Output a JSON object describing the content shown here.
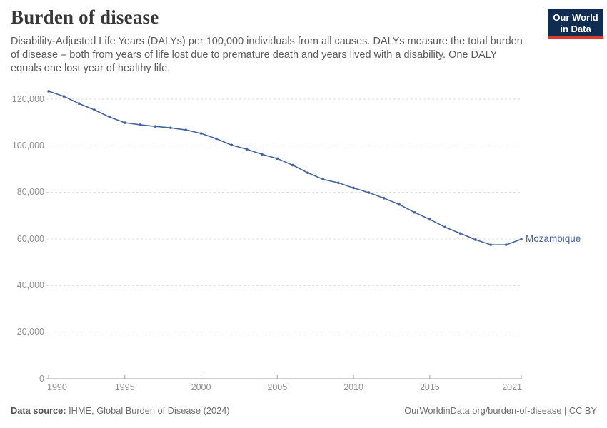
{
  "header": {
    "title": "Burden of disease",
    "subtitle": "Disability-Adjusted Life Years (DALYs) per 100,000 individuals from all causes. DALYs measure the total burden of disease – both from years of life lost due to premature death and years lived with a disability. One DALY equals one lost year of healthy life.",
    "logo": {
      "line1": "Our World",
      "line2": "in Data"
    }
  },
  "colors": {
    "line": "#44639e",
    "grid": "#dcdcdc",
    "axis": "#a3a3a3",
    "tick_text": "#8f8f8f",
    "title_text": "#383838",
    "subtitle_text": "#5a5a5a",
    "logo_bg": "#102c50",
    "logo_accent": "#dc3b32",
    "footer_text": "#6e6e6e"
  },
  "chart_data": {
    "type": "line",
    "title": "Burden of disease",
    "xlabel": "",
    "ylabel": "",
    "grid": "horizontal-dashed",
    "legend": "end-of-line-label",
    "xlim": [
      1990,
      2021
    ],
    "ylim": [
      0,
      125000
    ],
    "x": [
      1990,
      1991,
      1992,
      1993,
      1994,
      1995,
      1996,
      1997,
      1998,
      1999,
      2000,
      2001,
      2002,
      2003,
      2004,
      2005,
      2006,
      2007,
      2008,
      2009,
      2010,
      2011,
      2012,
      2013,
      2014,
      2015,
      2016,
      2017,
      2018,
      2019,
      2020,
      2021
    ],
    "series": [
      {
        "name": "Mozambique",
        "color": "#44639e",
        "values": [
          123400,
          121200,
          118100,
          115400,
          112300,
          109900,
          109000,
          108300,
          107700,
          106800,
          105300,
          103000,
          100300,
          98500,
          96300,
          94500,
          91700,
          88400,
          85600,
          84100,
          81900,
          79900,
          77500,
          74800,
          71400,
          68400,
          65100,
          62400,
          59700,
          57500,
          57500,
          59900
        ]
      }
    ],
    "xticks": [
      1990,
      1995,
      2000,
      2005,
      2010,
      2015,
      2021
    ],
    "xtick_labels": [
      "1990",
      "1995",
      "2000",
      "2005",
      "2010",
      "2015",
      "2021"
    ],
    "yticks": [
      0,
      20000,
      40000,
      60000,
      80000,
      100000,
      120000
    ],
    "ytick_labels": [
      "0",
      "20,000",
      "40,000",
      "60,000",
      "80,000",
      "100,000",
      "120,000"
    ]
  },
  "footer": {
    "source_label": "Data source:",
    "source_value": "IHME, Global Burden of Disease (2024)",
    "credit": "OurWorldinData.org/burden-of-disease | CC BY"
  }
}
